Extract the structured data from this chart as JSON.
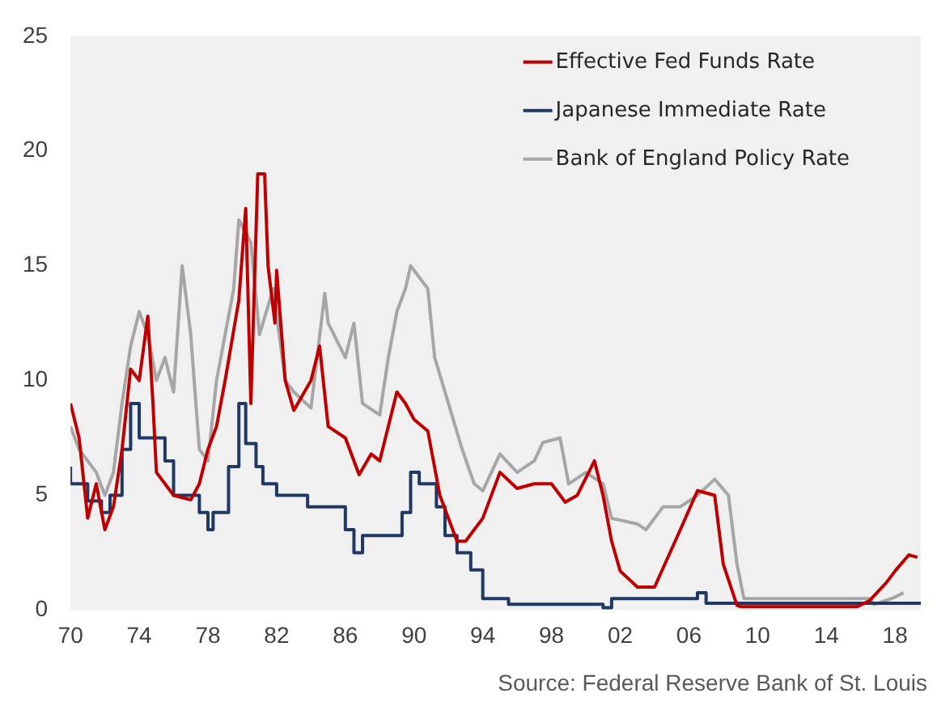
{
  "chart_data": {
    "type": "line",
    "xlim": [
      1970,
      2019.5
    ],
    "xticks": [
      {
        "value": 1970,
        "label": "70"
      },
      {
        "value": 1974,
        "label": "74"
      },
      {
        "value": 1978,
        "label": "78"
      },
      {
        "value": 1982,
        "label": "82"
      },
      {
        "value": 1986,
        "label": "86"
      },
      {
        "value": 1990,
        "label": "90"
      },
      {
        "value": 1994,
        "label": "94"
      },
      {
        "value": 1998,
        "label": "98"
      },
      {
        "value": 2002,
        "label": "02"
      },
      {
        "value": 2006,
        "label": "06"
      },
      {
        "value": 2010,
        "label": "10"
      },
      {
        "value": 2014,
        "label": "14"
      },
      {
        "value": 2018,
        "label": "18"
      }
    ],
    "ylim": [
      0,
      25
    ],
    "yticks": [
      0,
      5,
      10,
      15,
      20,
      25
    ],
    "grid": false,
    "legend": "top right",
    "annotations": [
      "Source: Federal Reserve Bank of St. Louis"
    ],
    "series": [
      {
        "name": "Effective Fed Funds Rate",
        "color": "#c00000",
        "x": [
          1970,
          1970.5,
          1971,
          1971.5,
          1972,
          1972.5,
          1973,
          1973.5,
          1974,
          1974.5,
          1974.8,
          1975,
          1975.5,
          1976,
          1977,
          1977.5,
          1978,
          1978.5,
          1979,
          1979.8,
          1980.2,
          1980.5,
          1980.9,
          1981.3,
          1981.5,
          1981.9,
          1982,
          1982.5,
          1983,
          1984,
          1984.5,
          1985,
          1986,
          1986.8,
          1987.5,
          1988,
          1989,
          1989.5,
          1990,
          1990.8,
          1991.5,
          1992.5,
          1993,
          1994,
          1995,
          1996,
          1997,
          1998,
          1998.8,
          1999.5,
          2000.5,
          2001,
          2001.5,
          2002,
          2003,
          2004,
          2005.5,
          2006.5,
          2007.5,
          2008,
          2008.8,
          2009,
          2015.8,
          2016.5,
          2017.5,
          2018,
          2018.8,
          2019.3
        ],
        "values": [
          9,
          7.5,
          4,
          5.5,
          3.5,
          4.5,
          7,
          10.5,
          10,
          12.8,
          9,
          6,
          5.5,
          5,
          4.8,
          5.5,
          7,
          8,
          10,
          13.5,
          17.5,
          9,
          19,
          19,
          15,
          12.5,
          14.8,
          10,
          8.7,
          10,
          11.5,
          8,
          7.5,
          5.9,
          6.8,
          6.5,
          9.5,
          9,
          8.3,
          7.8,
          5,
          3,
          3,
          4,
          6,
          5.3,
          5.5,
          5.5,
          4.7,
          5,
          6.5,
          5,
          3,
          1.7,
          1,
          1,
          3.5,
          5.2,
          5,
          2,
          0.2,
          0.15,
          0.15,
          0.4,
          1.2,
          1.7,
          2.4,
          2.3
        ]
      },
      {
        "name": "Japanese Immediate Rate",
        "color": "#1f3864",
        "type": "step",
        "x": [
          1970,
          1971,
          1971.8,
          1972.3,
          1973,
          1973.5,
          1974,
          1975.5,
          1976,
          1977.5,
          1978,
          1978.3,
          1979.2,
          1979.8,
          1980.2,
          1980.8,
          1981.2,
          1982,
          1983.8,
          1986,
          1986.5,
          1987,
          1989.3,
          1989.8,
          1990.3,
          1991.3,
          1991.8,
          1992.5,
          1993.3,
          1994,
          1995.5,
          2001,
          2001.5,
          2006.5,
          2007,
          2008.8,
          2019.5
        ],
        "values": [
          6.25,
          5.5,
          4.75,
          4.25,
          5,
          7,
          9,
          7.5,
          6.5,
          5,
          4.25,
          3.5,
          4.25,
          6.25,
          9,
          7.25,
          6.25,
          5.5,
          5,
          4.5,
          3.5,
          2.5,
          3.25,
          4.25,
          6,
          5.5,
          4.5,
          3.25,
          2.5,
          1.75,
          0.5,
          0.25,
          0.1,
          0.5,
          0.75,
          0.3,
          0.3
        ]
      },
      {
        "name": "Bank of England Policy Rate",
        "color": "#a6a6a6",
        "x": [
          1970,
          1970.5,
          1971.5,
          1972,
          1972.5,
          1973,
          1973.5,
          1974,
          1974.5,
          1975,
          1975.5,
          1976,
          1976.5,
          1977,
          1977.5,
          1978,
          1978.5,
          1979,
          1979.5,
          1979.8,
          1980.5,
          1981,
          1981.8,
          1982.5,
          1983,
          1984,
          1984.8,
          1985,
          1986,
          1986.5,
          1987,
          1988,
          1988.5,
          1989,
          1989.5,
          1989.8,
          1990.8,
          1991.2,
          1992,
          1992.8,
          1993.5,
          1994,
          1995,
          1996,
          1997,
          1997.5,
          1998.5,
          1999,
          2000,
          2001,
          2001.5,
          2003,
          2003.5,
          2004.5,
          2005.5,
          2006.5,
          2007.5,
          2008.3,
          2008.8,
          2009.2,
          2016.5,
          2016.8,
          2017.8,
          2018.5
        ],
        "values": [
          8,
          7,
          6,
          5,
          6,
          9,
          11.5,
          13,
          12,
          10,
          11,
          9.5,
          15,
          12,
          7,
          6.5,
          10,
          12,
          14,
          17,
          16,
          12,
          14,
          10,
          9.5,
          8.8,
          13.8,
          12.5,
          11,
          12.5,
          9,
          8.5,
          11,
          13,
          14,
          15,
          14,
          11,
          9,
          7,
          5.5,
          5.2,
          6.8,
          6,
          6.5,
          7.3,
          7.5,
          5.5,
          6,
          5.5,
          4,
          3.75,
          3.5,
          4.5,
          4.5,
          5,
          5.7,
          5,
          2,
          0.5,
          0.5,
          0.25,
          0.5,
          0.75
        ]
      }
    ]
  }
}
